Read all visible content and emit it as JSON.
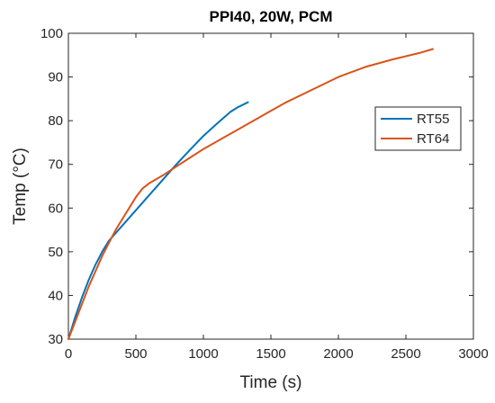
{
  "chart_data": {
    "type": "line",
    "title": "PPI40, 20W, PCM",
    "xlabel": "Time (s)",
    "ylabel": "Temp (°C)",
    "xlim": [
      0,
      3000
    ],
    "ylim": [
      30,
      100
    ],
    "xticks": [
      0,
      500,
      1000,
      1500,
      2000,
      2500,
      3000
    ],
    "yticks": [
      30,
      40,
      50,
      60,
      70,
      80,
      90,
      100
    ],
    "xtick_labels": [
      "0",
      "500",
      "1000",
      "1500",
      "2000",
      "2500",
      "3000"
    ],
    "ytick_labels": [
      "30",
      "40",
      "50",
      "60",
      "70",
      "80",
      "90",
      "100"
    ],
    "grid": false,
    "legend_position": "right",
    "series": [
      {
        "name": "RT55",
        "color": "#0072BD",
        "x": [
          0,
          50,
          100,
          150,
          200,
          250,
          300,
          400,
          500,
          600,
          700,
          800,
          900,
          1000,
          1100,
          1200,
          1250,
          1330
        ],
        "y": [
          30,
          35,
          39.5,
          43.5,
          47,
          50,
          52.5,
          56,
          59.5,
          63,
          66.5,
          70,
          73.3,
          76.5,
          79.3,
          82,
          83,
          84.2
        ]
      },
      {
        "name": "RT64",
        "color": "#D95319",
        "x": [
          0,
          50,
          100,
          150,
          200,
          250,
          300,
          350,
          400,
          450,
          500,
          550,
          600,
          700,
          800,
          900,
          1000,
          1200,
          1400,
          1600,
          1800,
          2000,
          2200,
          2400,
          2600,
          2700
        ],
        "y": [
          30,
          34,
          38,
          42,
          45.5,
          49,
          52,
          55,
          57.5,
          60,
          62.5,
          64.5,
          65.7,
          67.5,
          69.5,
          71.5,
          73.5,
          77,
          80.5,
          84,
          87,
          90,
          92.3,
          94,
          95.5,
          96.4
        ]
      }
    ]
  }
}
